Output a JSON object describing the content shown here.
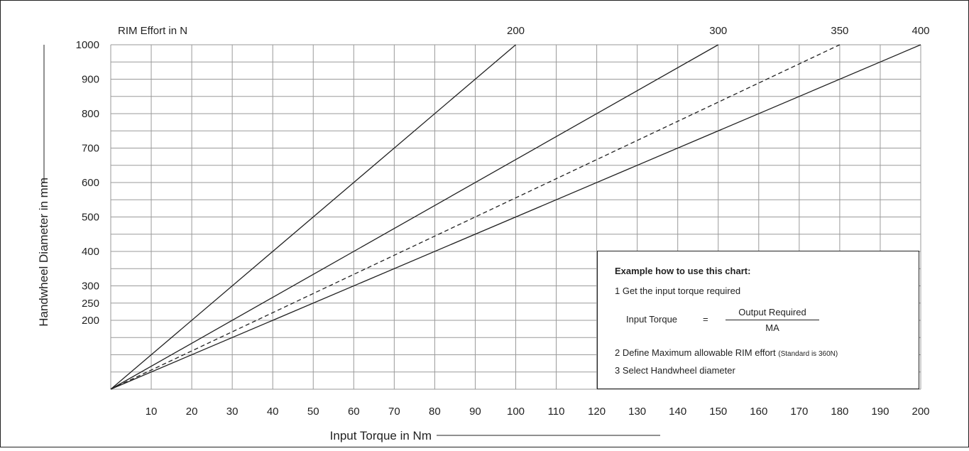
{
  "chart_data": {
    "type": "line",
    "title": "",
    "xlabel": "Input Torque in Nm",
    "ylabel": "Handwheel Diameter in mm",
    "top_axis_label": "RIM Effort in N",
    "xlim": [
      0,
      200
    ],
    "ylim": [
      0,
      1000
    ],
    "x_ticks": [
      10,
      20,
      30,
      40,
      50,
      60,
      70,
      80,
      90,
      100,
      110,
      120,
      130,
      140,
      150,
      160,
      170,
      180,
      190,
      200
    ],
    "y_tick_labels": [
      {
        "value": 1000,
        "label": "1000"
      },
      {
        "value": 900,
        "label": "900"
      },
      {
        "value": 800,
        "label": "800"
      },
      {
        "value": 700,
        "label": "700"
      },
      {
        "value": 600,
        "label": "600"
      },
      {
        "value": 500,
        "label": "500"
      },
      {
        "value": 400,
        "label": "400"
      },
      {
        "value": 300,
        "label": "300"
      },
      {
        "value": 250,
        "label": "250"
      },
      {
        "value": 200,
        "label": "200"
      }
    ],
    "grid": true,
    "grid_x_step": 10,
    "grid_y_step": 50,
    "series": [
      {
        "name": "200",
        "dashed": false,
        "x": [
          0,
          100
        ],
        "y": [
          0,
          1000
        ]
      },
      {
        "name": "300",
        "dashed": false,
        "x": [
          0,
          150
        ],
        "y": [
          0,
          1000
        ]
      },
      {
        "name": "350",
        "dashed": true,
        "x": [
          0,
          180
        ],
        "y": [
          0,
          1000
        ]
      },
      {
        "name": "400",
        "dashed": false,
        "x": [
          0,
          200
        ],
        "y": [
          0,
          1000
        ]
      }
    ],
    "colors": {
      "line": "#222222",
      "grid": "#9a9a9a",
      "text": "#222222",
      "background": "#ffffff"
    }
  },
  "info_box": {
    "title": "Example how to use this chart:",
    "step1": "1  Get the input torque required",
    "formula_lhs": "Input Torque",
    "formula_eq": "=",
    "formula_numerator": "Output Required",
    "formula_denominator": "MA",
    "step2": "2  Define Maximum allowable RIM effort",
    "step2_note": "(Standard is 360N)",
    "step3": "3  Select Handwheel diameter"
  }
}
